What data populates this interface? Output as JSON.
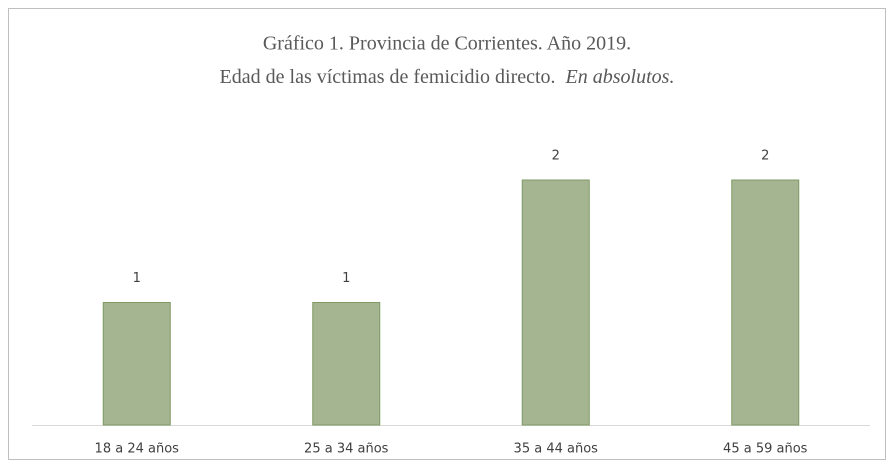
{
  "chart_data": {
    "type": "bar",
    "title": "Gráfico 1. Provincia de Corrientes. Año 2019.",
    "subtitle": "Edad de las víctimas de femicidio directo.",
    "subtitle_italic": "En absolutos.",
    "categories": [
      "18 a 24 años",
      "25 a 34 años",
      "35 a 44 años",
      "45 a 59 años"
    ],
    "values": [
      1,
      1,
      2,
      2
    ],
    "color": "#a5b592"
  }
}
